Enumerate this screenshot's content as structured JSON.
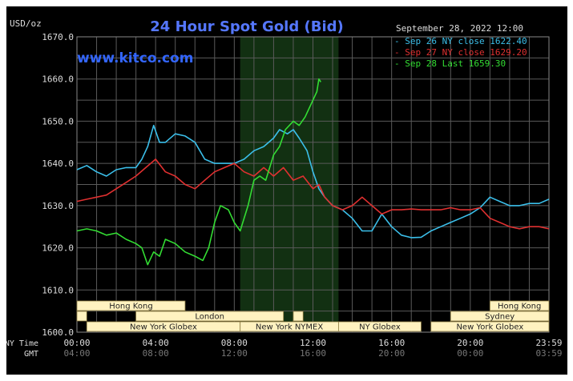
{
  "chart_data": {
    "type": "line",
    "title": "24 Hour Spot Gold (Bid)",
    "unit_label": "USD/oz",
    "watermark": "www.kitco.com",
    "date_label": "September 28, 2022 12:00",
    "ylim": [
      1600,
      1670
    ],
    "y_ticks": [
      "1670.0",
      "1660.0",
      "1650.0",
      "1640.0",
      "1630.0",
      "1620.0",
      "1610.0",
      "1600.0"
    ],
    "x_row_ny_label": "NY Time",
    "x_row_gmt_label": "GMT",
    "x_ticks_ny": [
      "00:00",
      "04:00",
      "08:00",
      "12:00",
      "16:00",
      "20:00",
      "23:59"
    ],
    "x_ticks_gmt": [
      "04:00",
      "08:00",
      "12:00",
      "16:00",
      "20:00",
      "00:00",
      "03:59"
    ],
    "highlight_span_hours": [
      8.3,
      13.3
    ],
    "colors": {
      "background": "#000000",
      "grid": "#5a5a5a",
      "title": "#5577ff",
      "watermark": "#3366ff",
      "text": "#dddddd",
      "market_fill": "#fff2c0",
      "market_text": "#222222",
      "highlight": "#123012"
    },
    "series": [
      {
        "name": "Sep 26 NY close 1622.40",
        "color": "#3bbfea",
        "points": [
          [
            0,
            1638.5
          ],
          [
            0.5,
            1639.5
          ],
          [
            1,
            1638
          ],
          [
            1.5,
            1637
          ],
          [
            2,
            1638.5
          ],
          [
            2.5,
            1639
          ],
          [
            3,
            1639
          ],
          [
            3.3,
            1641
          ],
          [
            3.6,
            1644
          ],
          [
            3.9,
            1649
          ],
          [
            4.2,
            1645
          ],
          [
            4.5,
            1645
          ],
          [
            5,
            1647
          ],
          [
            5.5,
            1646.5
          ],
          [
            6,
            1645
          ],
          [
            6.5,
            1641
          ],
          [
            7,
            1640
          ],
          [
            7.5,
            1640
          ],
          [
            8,
            1640
          ],
          [
            8.5,
            1641
          ],
          [
            9,
            1643
          ],
          [
            9.5,
            1644
          ],
          [
            10,
            1646
          ],
          [
            10.3,
            1648
          ],
          [
            10.7,
            1647
          ],
          [
            11,
            1648
          ],
          [
            11.3,
            1646
          ],
          [
            11.7,
            1643
          ],
          [
            12,
            1638
          ],
          [
            12.3,
            1634
          ],
          [
            12.6,
            1632
          ],
          [
            13,
            1630
          ],
          [
            13.5,
            1629
          ],
          [
            14,
            1627
          ],
          [
            14.5,
            1624
          ],
          [
            15,
            1624
          ],
          [
            15.5,
            1628
          ],
          [
            16,
            1625
          ],
          [
            16.5,
            1623
          ],
          [
            17,
            1622.4
          ],
          [
            17.5,
            1622.5
          ],
          [
            18,
            1624
          ],
          [
            18.5,
            1625
          ],
          [
            19,
            1626
          ],
          [
            19.5,
            1627
          ],
          [
            20,
            1628
          ],
          [
            20.5,
            1629.5
          ],
          [
            21,
            1632
          ],
          [
            21.5,
            1631
          ],
          [
            22,
            1630
          ],
          [
            22.5,
            1630
          ],
          [
            23,
            1630.5
          ],
          [
            23.5,
            1630.5
          ],
          [
            24,
            1631.5
          ]
        ]
      },
      {
        "name": "Sep 27 NY close 1629.20",
        "color": "#e03030",
        "points": [
          [
            0,
            1631
          ],
          [
            0.5,
            1631.5
          ],
          [
            1,
            1632
          ],
          [
            1.5,
            1632.5
          ],
          [
            2,
            1634
          ],
          [
            2.5,
            1635.5
          ],
          [
            3,
            1637
          ],
          [
            3.5,
            1639
          ],
          [
            4,
            1641
          ],
          [
            4.5,
            1638
          ],
          [
            5,
            1637
          ],
          [
            5.5,
            1635
          ],
          [
            6,
            1634
          ],
          [
            6.5,
            1636
          ],
          [
            7,
            1638
          ],
          [
            7.5,
            1639
          ],
          [
            8,
            1640
          ],
          [
            8.5,
            1638
          ],
          [
            9,
            1637
          ],
          [
            9.5,
            1639
          ],
          [
            10,
            1637
          ],
          [
            10.5,
            1639
          ],
          [
            11,
            1636
          ],
          [
            11.5,
            1637
          ],
          [
            12,
            1634
          ],
          [
            12.3,
            1635
          ],
          [
            12.6,
            1632
          ],
          [
            13,
            1630
          ],
          [
            13.5,
            1629
          ],
          [
            14,
            1630
          ],
          [
            14.5,
            1632
          ],
          [
            15,
            1630
          ],
          [
            15.5,
            1628
          ],
          [
            16,
            1629
          ],
          [
            16.5,
            1629
          ],
          [
            17,
            1629.2
          ],
          [
            17.5,
            1629
          ],
          [
            18,
            1629
          ],
          [
            18.5,
            1629
          ],
          [
            19,
            1629.5
          ],
          [
            19.5,
            1629
          ],
          [
            20,
            1629
          ],
          [
            20.5,
            1629.5
          ],
          [
            21,
            1627
          ],
          [
            21.5,
            1626
          ],
          [
            22,
            1625
          ],
          [
            22.5,
            1624.5
          ],
          [
            23,
            1625
          ],
          [
            23.5,
            1625
          ],
          [
            24,
            1624.5
          ]
        ]
      },
      {
        "name": "Sep 28 Last 1659.30",
        "color": "#33dd33",
        "points": [
          [
            0,
            1624
          ],
          [
            0.5,
            1624.5
          ],
          [
            1,
            1624
          ],
          [
            1.5,
            1623
          ],
          [
            2,
            1623.5
          ],
          [
            2.5,
            1622
          ],
          [
            3,
            1621
          ],
          [
            3.3,
            1620
          ],
          [
            3.6,
            1616
          ],
          [
            3.9,
            1619
          ],
          [
            4.2,
            1618
          ],
          [
            4.5,
            1622
          ],
          [
            5,
            1621
          ],
          [
            5.5,
            1619
          ],
          [
            6,
            1618
          ],
          [
            6.4,
            1617
          ],
          [
            6.7,
            1620
          ],
          [
            7,
            1626
          ],
          [
            7.3,
            1630
          ],
          [
            7.7,
            1629
          ],
          [
            8,
            1626
          ],
          [
            8.3,
            1624
          ],
          [
            8.7,
            1630
          ],
          [
            9,
            1636
          ],
          [
            9.3,
            1637
          ],
          [
            9.6,
            1636
          ],
          [
            10,
            1642
          ],
          [
            10.3,
            1644
          ],
          [
            10.6,
            1648
          ],
          [
            11,
            1650
          ],
          [
            11.3,
            1649
          ],
          [
            11.6,
            1651
          ],
          [
            12,
            1655
          ],
          [
            12.2,
            1657
          ],
          [
            12.3,
            1660
          ],
          [
            12.4,
            1659.3
          ]
        ]
      }
    ],
    "markets": [
      {
        "name": "Hong Kong",
        "row": 0,
        "start": 0,
        "end": 5.5
      },
      {
        "name": "Hong Kong",
        "row": 0,
        "start": 21,
        "end": 24
      },
      {
        "name": "London",
        "row": 1,
        "start": 0,
        "end": 0.5
      },
      {
        "name": "London",
        "row": 1,
        "start": 3,
        "end": 10.5
      },
      {
        "name": "London",
        "row": 1,
        "start": 11,
        "end": 11.5
      },
      {
        "name": "Sydney",
        "row": 1,
        "start": 19,
        "end": 24
      },
      {
        "name": "New York Globex",
        "row": 2,
        "start": 0.5,
        "end": 8.3
      },
      {
        "name": "New York NYMEX",
        "row": 2,
        "start": 8.3,
        "end": 13.3
      },
      {
        "name": "NY Globex",
        "row": 2,
        "start": 13.3,
        "end": 17.5
      },
      {
        "name": "New York Globex",
        "row": 2,
        "start": 18,
        "end": 24
      }
    ]
  }
}
